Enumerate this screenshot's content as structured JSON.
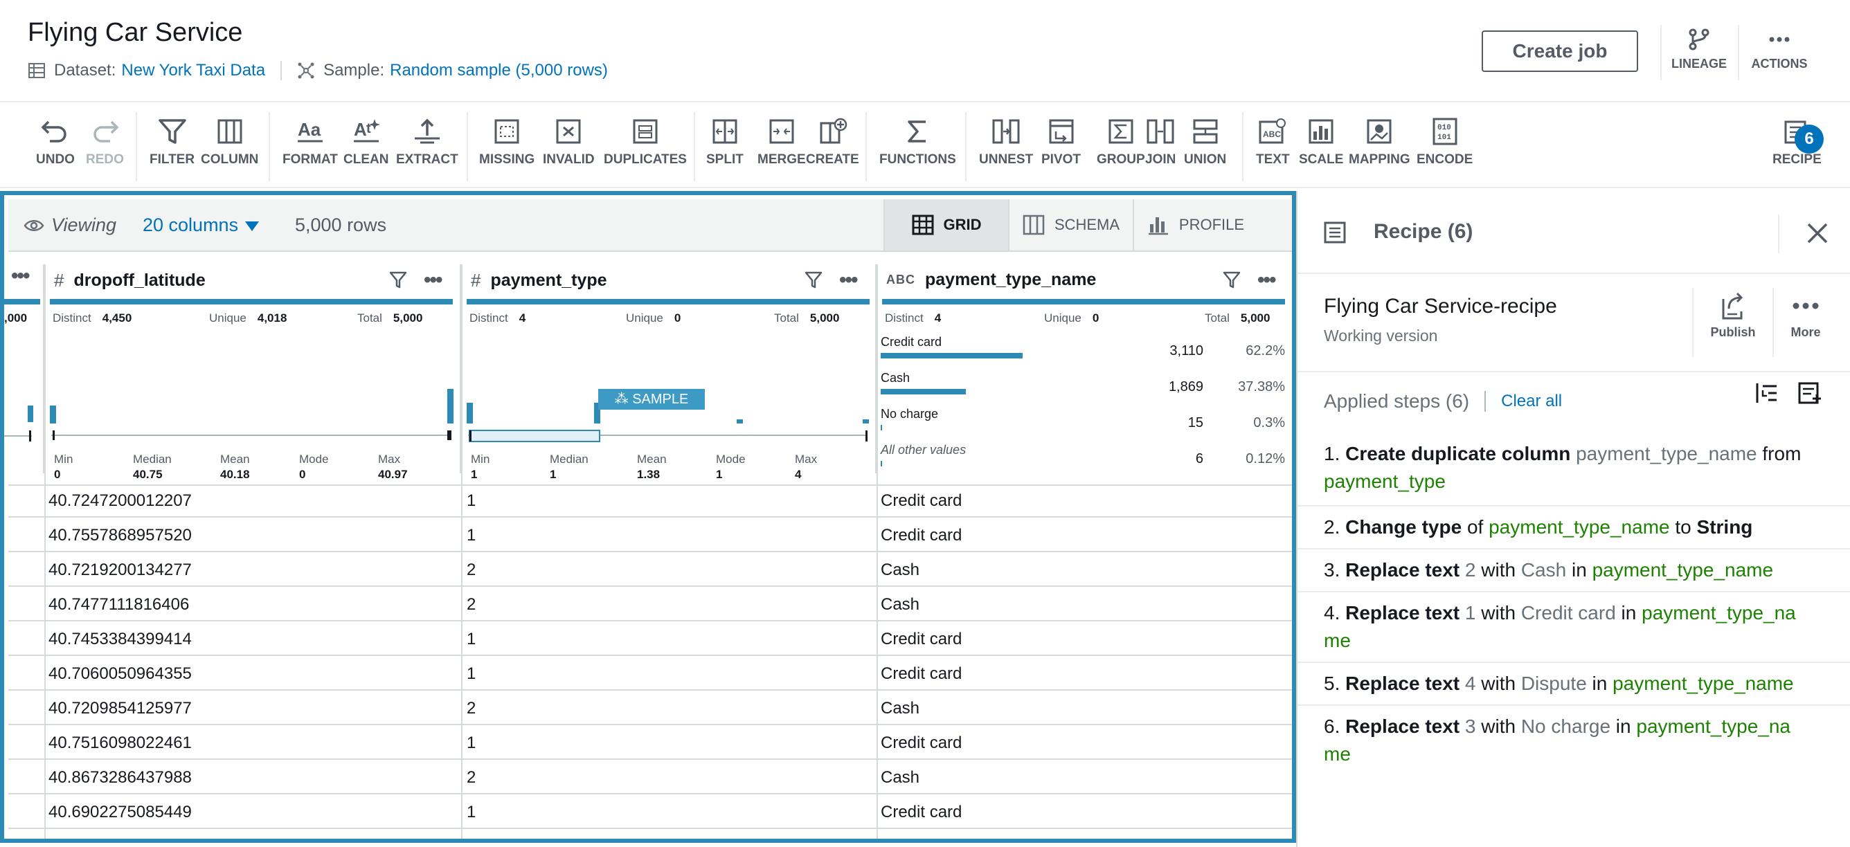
{
  "header": {
    "title": "Flying Car Service",
    "dataset_label": "Dataset:",
    "dataset_value": "New York Taxi Data",
    "sample_label": "Sample:",
    "sample_value": "Random sample (5,000 rows)",
    "create_job": "Create job",
    "lineage": "LINEAGE",
    "actions": "ACTIONS"
  },
  "toolbar": {
    "undo": "UNDO",
    "redo": "REDO",
    "filter": "FILTER",
    "column": "COLUMN",
    "format": "FORMAT",
    "clean": "CLEAN",
    "extract": "EXTRACT",
    "missing": "MISSING",
    "invalid": "INVALID",
    "duplicates": "DUPLICATES",
    "split": "SPLIT",
    "merge": "MERGE",
    "create": "CREATE",
    "functions": "FUNCTIONS",
    "unnest": "UNNEST",
    "pivot": "PIVOT",
    "group": "GROUP",
    "join": "JOIN",
    "union": "UNION",
    "text": "TEXT",
    "scale": "SCALE",
    "mapping": "MAPPING",
    "encode": "ENCODE",
    "recipe": "RECIPE",
    "recipe_count": "6"
  },
  "grid": {
    "sample_tag": "SAMPLE",
    "viewing": "Viewing",
    "columns": "20 columns",
    "rows": "5,000 rows",
    "tabs": {
      "grid": "GRID",
      "schema": "SCHEMA",
      "profile": "PROFILE"
    },
    "partial_col_value": ",000",
    "col1": {
      "type": "#",
      "name": "dropoff_latitude",
      "distinct_label": "Distinct",
      "distinct": "4,450",
      "unique_label": "Unique",
      "unique": "4,018",
      "total_label": "Total",
      "total": "5,000",
      "min_label": "Min",
      "min": "0",
      "median_label": "Median",
      "median": "40.75",
      "mean_label": "Mean",
      "mean": "40.18",
      "mode_label": "Mode",
      "mode": "0",
      "max_label": "Max",
      "max": "40.97"
    },
    "col2": {
      "type": "#",
      "name": "payment_type",
      "distinct_label": "Distinct",
      "distinct": "4",
      "unique_label": "Unique",
      "unique": "0",
      "total_label": "Total",
      "total": "5,000",
      "min_label": "Min",
      "min": "1",
      "median_label": "Median",
      "median": "1",
      "mean_label": "Mean",
      "mean": "1.38",
      "mode_label": "Mode",
      "mode": "1",
      "max_label": "Max",
      "max": "4"
    },
    "col3": {
      "type": "ABC",
      "name": "payment_type_name",
      "distinct_label": "Distinct",
      "distinct": "4",
      "unique_label": "Unique",
      "unique": "0",
      "total_label": "Total",
      "total": "5,000",
      "categories": [
        {
          "label": "Credit card",
          "count": "3,110",
          "pct": "62.2%",
          "share": 0.622
        },
        {
          "label": "Cash",
          "count": "1,869",
          "pct": "37.38%",
          "share": 0.3738
        },
        {
          "label": "No charge",
          "count": "15",
          "pct": "0.3%",
          "share": 0.003
        },
        {
          "label": "All other values",
          "count": "6",
          "pct": "0.12%",
          "share": 0.0012
        }
      ]
    },
    "rows_data": [
      [
        "40.7247200012207",
        "1",
        "Credit card"
      ],
      [
        "40.7557868957520",
        "1",
        "Credit card"
      ],
      [
        "40.7219200134277",
        "2",
        "Cash"
      ],
      [
        "40.7477111816406",
        "2",
        "Cash"
      ],
      [
        "40.7453384399414",
        "1",
        "Credit card"
      ],
      [
        "40.7060050964355",
        "1",
        "Credit card"
      ],
      [
        "40.7209854125977",
        "2",
        "Cash"
      ],
      [
        "40.7516098022461",
        "1",
        "Credit card"
      ],
      [
        "40.8673286437988",
        "2",
        "Cash"
      ],
      [
        "40.6902275085449",
        "1",
        "Credit card"
      ]
    ]
  },
  "recipe": {
    "title": "Recipe (6)",
    "name": "Flying Car Service-recipe",
    "version": "Working version",
    "publish": "Publish",
    "more": "More",
    "applied": "Applied steps (6)",
    "clear_all": "Clear all",
    "steps": [
      {
        "n": "1.",
        "action": "Create duplicate column",
        "p1": "payment_type_name",
        "w1": "from",
        "p2": "payment_type"
      },
      {
        "n": "2.",
        "action": "Change type",
        "w0": "of",
        "p1": "payment_type_name",
        "w1": "to",
        "p2": "String"
      },
      {
        "n": "3.",
        "action": "Replace text",
        "v1": "2",
        "w1": "with",
        "v2": "Cash",
        "w2": "in",
        "col": "payment_type_name"
      },
      {
        "n": "4.",
        "action": "Replace text",
        "v1": "1",
        "w1": "with",
        "v2": "Credit card",
        "w2": "in",
        "col_a": "payment_type_na",
        "col_b": "me"
      },
      {
        "n": "5.",
        "action": "Replace text",
        "v1": "4",
        "w1": "with",
        "v2": "Dispute",
        "w2": "in",
        "col": "payment_type_name"
      },
      {
        "n": "6.",
        "action": "Replace text",
        "v1": "3",
        "w1": "with",
        "v2": "No charge",
        "w2": "in",
        "col_a": "payment_type_na",
        "col_b": "me"
      }
    ]
  },
  "colors": {
    "accent": "#2d8ab5",
    "link": "#0073bb",
    "green": "#1d8102"
  }
}
